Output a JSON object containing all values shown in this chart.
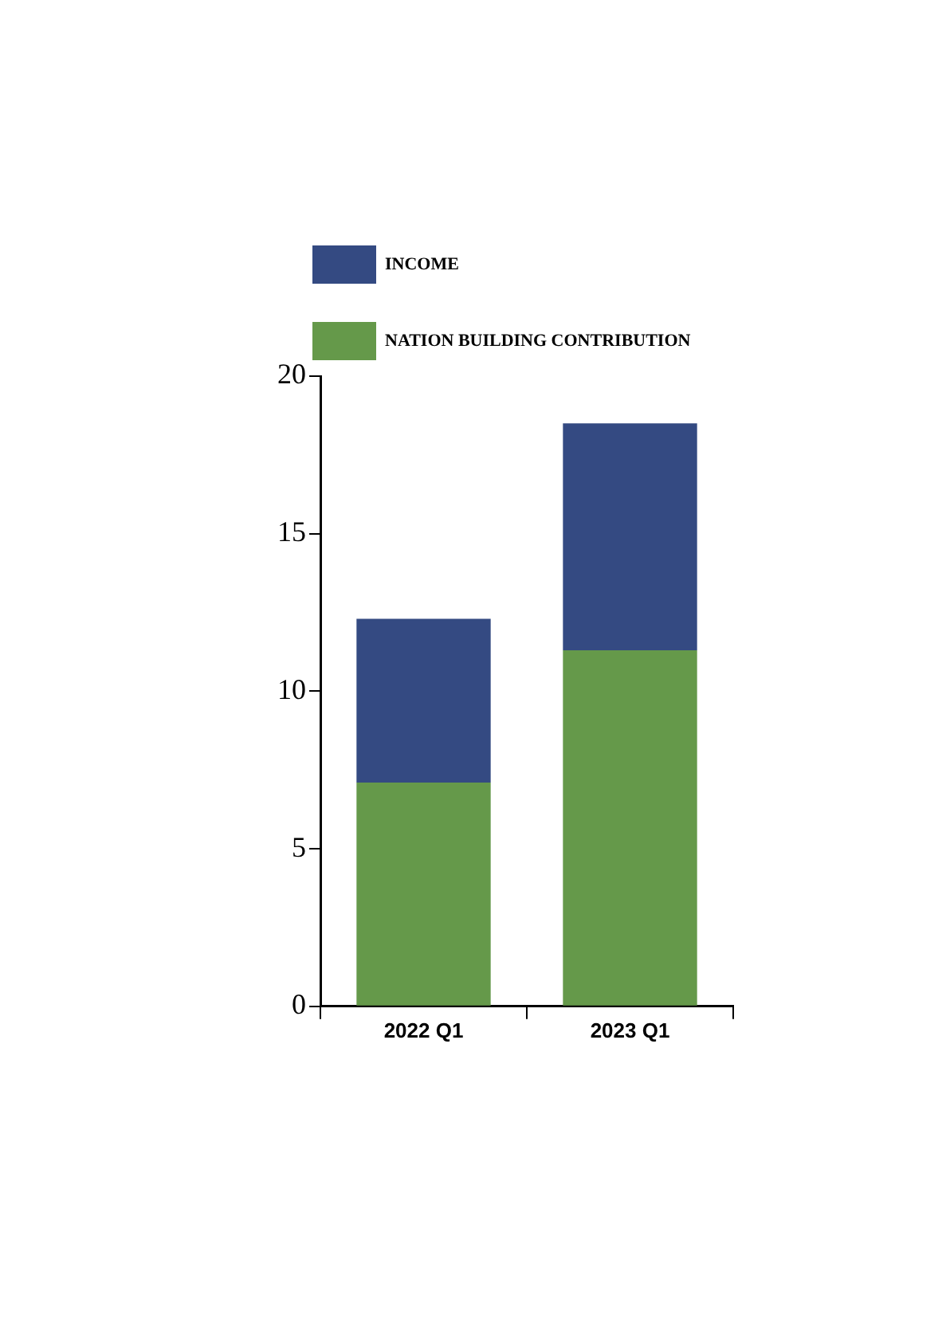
{
  "chart_data": {
    "type": "bar",
    "stacked": true,
    "categories": [
      "2022 Q1",
      "2023 Q1"
    ],
    "series": [
      {
        "name": "NATION BUILDING CONTRIBUTION",
        "color": "#65994a",
        "values": [
          7.1,
          11.3
        ]
      },
      {
        "name": "INCOME",
        "color": "#344a82",
        "values": [
          5.2,
          7.2
        ]
      }
    ],
    "ylim": [
      0,
      20
    ],
    "yticks": [
      0,
      5,
      10,
      15,
      20
    ],
    "grid": false,
    "legend": "top left"
  }
}
